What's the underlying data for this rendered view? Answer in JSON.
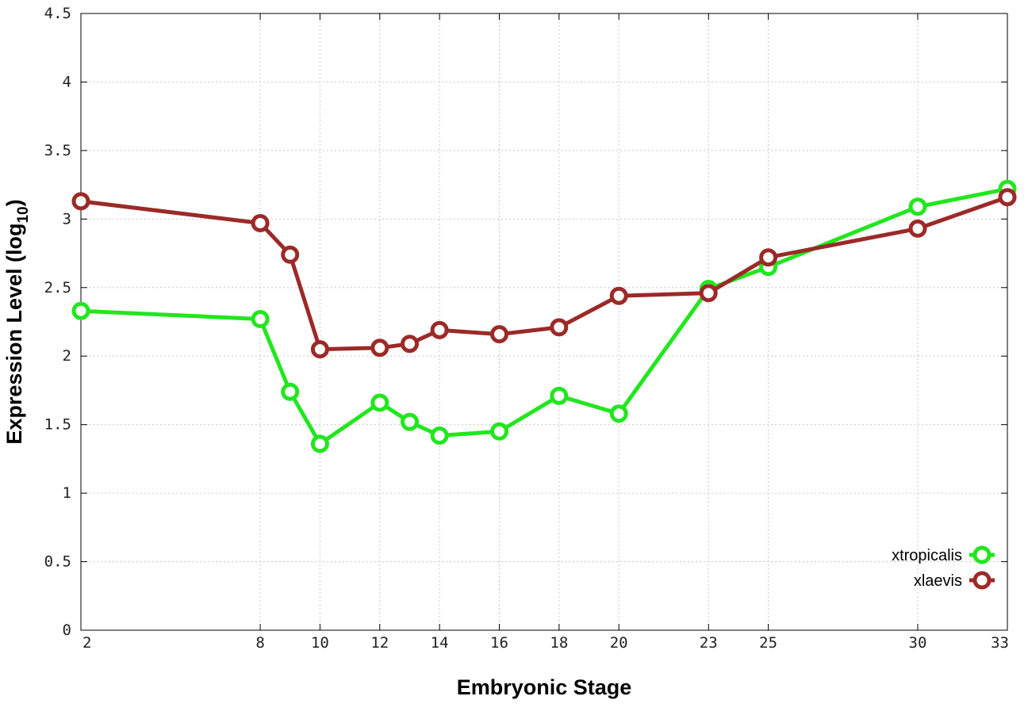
{
  "chart_data": {
    "type": "line",
    "title": "",
    "xlabel": "Embryonic Stage",
    "ylabel": "Expression Level (log",
    "ylabel_sub": "10",
    "ylabel_close": ")",
    "x_ticks": [
      2,
      8,
      10,
      12,
      14,
      16,
      18,
      20,
      23,
      25,
      30,
      33
    ],
    "y_ticks": [
      0,
      0.5,
      1,
      1.5,
      2,
      2.5,
      3,
      3.5,
      4,
      4.5
    ],
    "y_tick_labels": [
      "0",
      "0.5",
      "1",
      "1.5",
      "2",
      "2.5",
      "3",
      "3.5",
      "4",
      "4.5"
    ],
    "xlim": [
      2,
      33
    ],
    "ylim": [
      0,
      4.5
    ],
    "grid": true,
    "legend_position": "bottom-right",
    "x": [
      2,
      8,
      9,
      10,
      12,
      13,
      14,
      16,
      18,
      20,
      23,
      25,
      30,
      33
    ],
    "series": [
      {
        "name": "xtropicalis",
        "color": "#22e61e",
        "values": [
          2.33,
          2.27,
          1.74,
          1.36,
          1.66,
          1.52,
          1.42,
          1.45,
          1.71,
          1.58,
          2.49,
          2.65,
          3.09,
          3.22
        ]
      },
      {
        "name": "xlaevis",
        "color": "#9b2a28",
        "values": [
          3.13,
          2.97,
          2.74,
          2.05,
          2.06,
          2.09,
          2.19,
          2.16,
          2.21,
          2.44,
          2.46,
          2.72,
          2.93,
          3.16
        ]
      }
    ]
  }
}
